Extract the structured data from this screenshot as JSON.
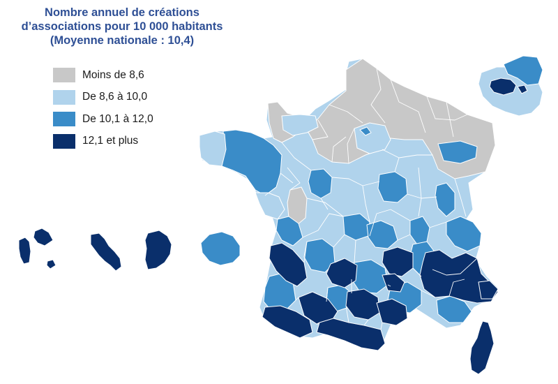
{
  "title": {
    "line1": "Nombre annuel de créations",
    "line2": "d’associations pour 10 000 habitants",
    "line3": "(Moyenne nationale : 10,4)"
  },
  "legend": {
    "items": [
      {
        "label": "Moins de 8,6",
        "color": "#c8c8c8"
      },
      {
        "label": "De 8,6 à 10,0",
        "color": "#b0d3ec"
      },
      {
        "label": "De 10,1 à 12,0",
        "color": "#3a8cc8"
      },
      {
        "label": "12,1 et plus",
        "color": "#0a2f6b"
      }
    ]
  }
}
